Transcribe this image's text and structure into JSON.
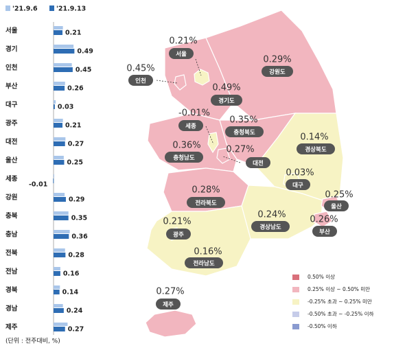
{
  "chart_data": [
    {
      "type": "bar",
      "orientation": "horizontal",
      "categories": [
        "서울",
        "경기",
        "인천",
        "부산",
        "대구",
        "광주",
        "대전",
        "울산",
        "세종",
        "강원",
        "충북",
        "충남",
        "전북",
        "전남",
        "경북",
        "경남",
        "제주"
      ],
      "series": [
        {
          "name": "'21.9.6",
          "color": "#a9c6ea",
          "values": [
            0.22,
            0.47,
            0.43,
            0.27,
            0.05,
            0.22,
            0.28,
            0.24,
            0.0,
            0.26,
            0.35,
            0.38,
            0.27,
            0.16,
            0.15,
            0.22,
            0.33
          ]
        },
        {
          "name": "'21.9.13",
          "color": "#2e6db4",
          "values": [
            0.21,
            0.49,
            0.45,
            0.26,
            0.03,
            0.21,
            0.27,
            0.25,
            -0.01,
            0.29,
            0.35,
            0.36,
            0.28,
            0.16,
            0.14,
            0.24,
            0.27
          ]
        }
      ],
      "footnote": "(단위 : 전주대비, %)"
    },
    {
      "type": "map",
      "regions": [
        {
          "name": "서울",
          "value": 0.21,
          "value_label": "0.21%",
          "color": "#f7f3c4"
        },
        {
          "name": "인천",
          "value": 0.45,
          "value_label": "0.45%",
          "color": "#f2b6bf"
        },
        {
          "name": "강원도",
          "value": 0.29,
          "value_label": "0.29%",
          "color": "#f2b6bf"
        },
        {
          "name": "경기도",
          "value": 0.49,
          "value_label": "0.49%",
          "color": "#f2b6bf"
        },
        {
          "name": "세종",
          "value": -0.01,
          "value_label": "-0.01%",
          "color": "#f7f3c4"
        },
        {
          "name": "충청북도",
          "value": 0.35,
          "value_label": "0.35%",
          "color": "#f2b6bf"
        },
        {
          "name": "충청남도",
          "value": 0.36,
          "value_label": "0.36%",
          "color": "#f2b6bf"
        },
        {
          "name": "대전",
          "value": 0.27,
          "value_label": "0.27%",
          "color": "#f2b6bf"
        },
        {
          "name": "경상북도",
          "value": 0.14,
          "value_label": "0.14%",
          "color": "#f7f3c4"
        },
        {
          "name": "대구",
          "value": 0.03,
          "value_label": "0.03%",
          "color": "#f7f3c4"
        },
        {
          "name": "전라북도",
          "value": 0.28,
          "value_label": "0.28%",
          "color": "#f2b6bf"
        },
        {
          "name": "울산",
          "value": 0.25,
          "value_label": "0.25%",
          "color": "#f2b6bf"
        },
        {
          "name": "경상남도",
          "value": 0.24,
          "value_label": "0.24%",
          "color": "#f7f3c4"
        },
        {
          "name": "부산",
          "value": 0.26,
          "value_label": "0.26%",
          "color": "#f2b6bf"
        },
        {
          "name": "광주",
          "value": 0.21,
          "value_label": "0.21%",
          "color": "#f7f3c4"
        },
        {
          "name": "전라남도",
          "value": 0.16,
          "value_label": "0.16%",
          "color": "#f7f3c4"
        },
        {
          "name": "제주",
          "value": 0.27,
          "value_label": "0.27%",
          "color": "#f2b6bf"
        }
      ],
      "legend": [
        {
          "label": "0.50% 이상",
          "color": "#d9707b"
        },
        {
          "label": "0.25% 이상 ~ 0.50% 미만",
          "color": "#f2b6bf"
        },
        {
          "label": "-0.25% 초과 ~ 0.25% 미만",
          "color": "#f7f3c4"
        },
        {
          "label": "-0.50% 초과 ~ -0.25% 이하",
          "color": "#c6cce9"
        },
        {
          "label": "-0.50% 이하",
          "color": "#8a9bd0"
        }
      ]
    }
  ]
}
